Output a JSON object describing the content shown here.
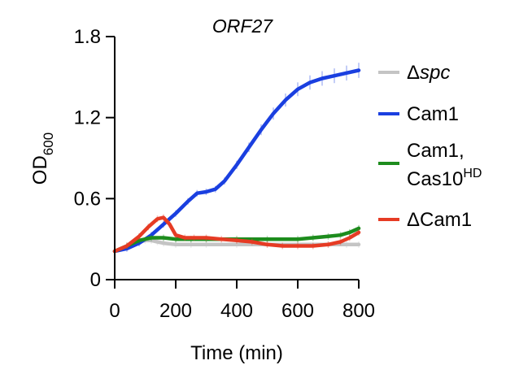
{
  "chart_data": {
    "type": "line",
    "title": "ORF27",
    "xlabel": "Time (min)",
    "ylabel_main": "OD",
    "ylabel_sub": "600",
    "xlim": [
      0,
      800
    ],
    "ylim": [
      0,
      1.8
    ],
    "xticks": [
      0,
      200,
      400,
      600,
      800
    ],
    "yticks": [
      0,
      0.6,
      1.2,
      1.8
    ],
    "xtick_labels": [
      "0",
      "200",
      "400",
      "600",
      "800"
    ],
    "ytick_labels": [
      "0",
      "0.6",
      "1.2",
      "1.8"
    ],
    "legend_position": "right",
    "series": [
      {
        "name": "Δspc",
        "legend_prefix": "Δ",
        "legend_main": "spc",
        "legend_italic": true,
        "color": "#c4c4c4",
        "x": [
          0,
          40,
          80,
          100,
          120,
          140,
          160,
          200,
          250,
          300,
          400,
          500,
          600,
          700,
          760,
          800
        ],
        "y": [
          0.21,
          0.24,
          0.28,
          0.29,
          0.29,
          0.28,
          0.27,
          0.26,
          0.26,
          0.26,
          0.26,
          0.26,
          0.26,
          0.26,
          0.26,
          0.26
        ]
      },
      {
        "name": "Cam1",
        "legend_line1": "Cam1",
        "color": "#1a3fe0",
        "x": [
          0,
          40,
          80,
          120,
          160,
          200,
          240,
          270,
          300,
          330,
          360,
          400,
          440,
          480,
          520,
          560,
          600,
          640,
          680,
          720,
          760,
          800
        ],
        "y": [
          0.21,
          0.23,
          0.27,
          0.33,
          0.41,
          0.49,
          0.58,
          0.64,
          0.65,
          0.67,
          0.73,
          0.85,
          0.98,
          1.11,
          1.23,
          1.33,
          1.41,
          1.46,
          1.49,
          1.51,
          1.53,
          1.55
        ]
      },
      {
        "name": "Cam1, Cas10HD",
        "legend_line1": "Cam1,",
        "legend_line2": "Cas10",
        "legend_sup": "HD",
        "color": "#1d8c1d",
        "x": [
          0,
          40,
          80,
          120,
          160,
          200,
          250,
          300,
          400,
          500,
          600,
          650,
          700,
          740,
          770,
          800
        ],
        "y": [
          0.21,
          0.25,
          0.29,
          0.31,
          0.31,
          0.3,
          0.3,
          0.3,
          0.3,
          0.3,
          0.3,
          0.31,
          0.32,
          0.33,
          0.35,
          0.38
        ]
      },
      {
        "name": "ΔCam1",
        "legend_line1": "ΔCam1",
        "color": "#e63b24",
        "x": [
          0,
          40,
          80,
          110,
          140,
          160,
          180,
          200,
          230,
          260,
          300,
          350,
          400,
          450,
          500,
          550,
          600,
          650,
          700,
          740,
          770,
          800
        ],
        "y": [
          0.21,
          0.25,
          0.32,
          0.39,
          0.45,
          0.46,
          0.41,
          0.33,
          0.31,
          0.31,
          0.31,
          0.3,
          0.29,
          0.28,
          0.26,
          0.25,
          0.25,
          0.25,
          0.26,
          0.28,
          0.31,
          0.35
        ]
      }
    ]
  }
}
